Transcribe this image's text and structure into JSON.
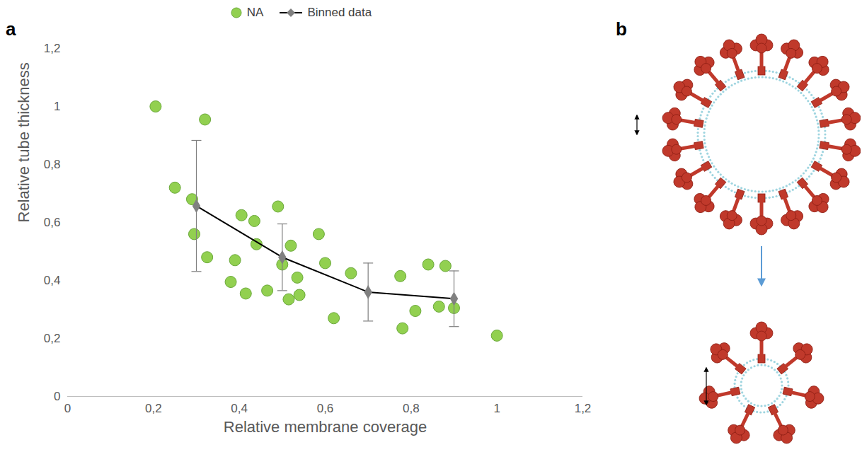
{
  "chart_data": {
    "type": "scatter",
    "panel_label": "a",
    "x_label": "Relative membrane coverage",
    "y_label": "Relative tube thickness",
    "xlim": [
      0,
      1.2
    ],
    "ylim": [
      0,
      1.2
    ],
    "xticks": [
      0,
      {
        "value": 0.2,
        "label": "0,2"
      },
      {
        "value": 0.4,
        "label": "0,4"
      },
      {
        "value": 0.6,
        "label": "0,6"
      },
      {
        "value": 0.8,
        "label": "0,8"
      },
      1,
      {
        "value": 1.2,
        "label": "1,2"
      }
    ],
    "yticks": [
      0,
      {
        "value": 0.2,
        "label": "0,2"
      },
      {
        "value": 0.4,
        "label": "0,4"
      },
      {
        "value": 0.6,
        "label": "0,6"
      },
      {
        "value": 0.8,
        "label": "0,8"
      },
      1,
      {
        "value": 1.2,
        "label": "1,2"
      }
    ],
    "grid": false,
    "legend": "top",
    "series": [
      {
        "name": "NA",
        "type": "scatter",
        "color": "#92d050",
        "marker": "circle",
        "x": [
          0.205,
          0.25,
          0.29,
          0.295,
          0.32,
          0.325,
          0.38,
          0.39,
          0.405,
          0.415,
          0.435,
          0.44,
          0.465,
          0.49,
          0.5,
          0.515,
          0.52,
          0.535,
          0.54,
          0.585,
          0.6,
          0.62,
          0.66,
          0.775,
          0.78,
          0.81,
          0.84,
          0.865,
          0.88,
          0.9,
          1.0
        ],
        "values": [
          1.0,
          0.72,
          0.68,
          0.56,
          0.955,
          0.48,
          0.395,
          0.47,
          0.625,
          0.355,
          0.605,
          0.525,
          0.365,
          0.655,
          0.455,
          0.335,
          0.52,
          0.41,
          0.35,
          0.56,
          0.46,
          0.27,
          0.425,
          0.415,
          0.235,
          0.295,
          0.455,
          0.31,
          0.45,
          0.305,
          0.21
        ]
      },
      {
        "name": "Binned data",
        "type": "line",
        "color": "#000000",
        "marker": "diamond",
        "x": [
          0.3,
          0.5,
          0.7,
          0.9
        ],
        "values": [
          0.657,
          0.48,
          0.36,
          0.337
        ],
        "errors": [
          0.226,
          0.115,
          0.1,
          0.096
        ]
      }
    ]
  },
  "diagram": {
    "panel_label": "b"
  }
}
